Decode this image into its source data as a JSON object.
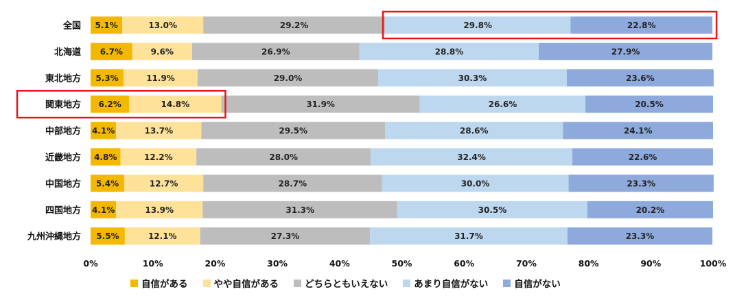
{
  "chart_data": {
    "type": "bar",
    "orientation": "horizontal-stacked-100",
    "categories": [
      "全国",
      "北海道",
      "東北地方",
      "関東地方",
      "中部地方",
      "近畿地方",
      "中国地方",
      "四国地方",
      "九州沖縄地方"
    ],
    "series": [
      {
        "name": "自信がある",
        "color": "#F5B800",
        "values": [
          5.1,
          6.7,
          5.3,
          6.2,
          4.1,
          4.8,
          5.4,
          4.1,
          5.5
        ]
      },
      {
        "name": "やや自信がある",
        "color": "#FFE29A",
        "values": [
          13.0,
          9.6,
          11.9,
          14.8,
          13.7,
          12.2,
          12.7,
          13.9,
          12.1
        ]
      },
      {
        "name": "どちらともいえない",
        "color": "#BDBDBD",
        "values": [
          29.2,
          26.9,
          29.0,
          31.9,
          29.5,
          28.0,
          28.7,
          31.3,
          27.3
        ]
      },
      {
        "name": "あまり自信がない",
        "color": "#BDD7EE",
        "values": [
          29.8,
          28.8,
          30.3,
          26.6,
          28.6,
          32.4,
          30.0,
          30.5,
          31.7
        ]
      },
      {
        "name": "自信がない",
        "color": "#8EA9DB",
        "values": [
          22.8,
          27.9,
          23.6,
          20.5,
          24.1,
          22.6,
          23.3,
          20.2,
          23.3
        ]
      }
    ],
    "xlim": [
      0,
      100
    ],
    "x_ticks": [
      "0%",
      "10%",
      "20%",
      "30%",
      "40%",
      "50%",
      "60%",
      "70%",
      "80%",
      "90%",
      "100%"
    ],
    "legend_position": "bottom",
    "highlights": [
      {
        "category": "全国",
        "series": [
          "あまり自信がない",
          "自信がない"
        ],
        "color": "#E8141B"
      },
      {
        "category": "関東地方",
        "series": [
          "自信がある",
          "やや自信がある"
        ],
        "color": "#E8141B"
      }
    ]
  }
}
